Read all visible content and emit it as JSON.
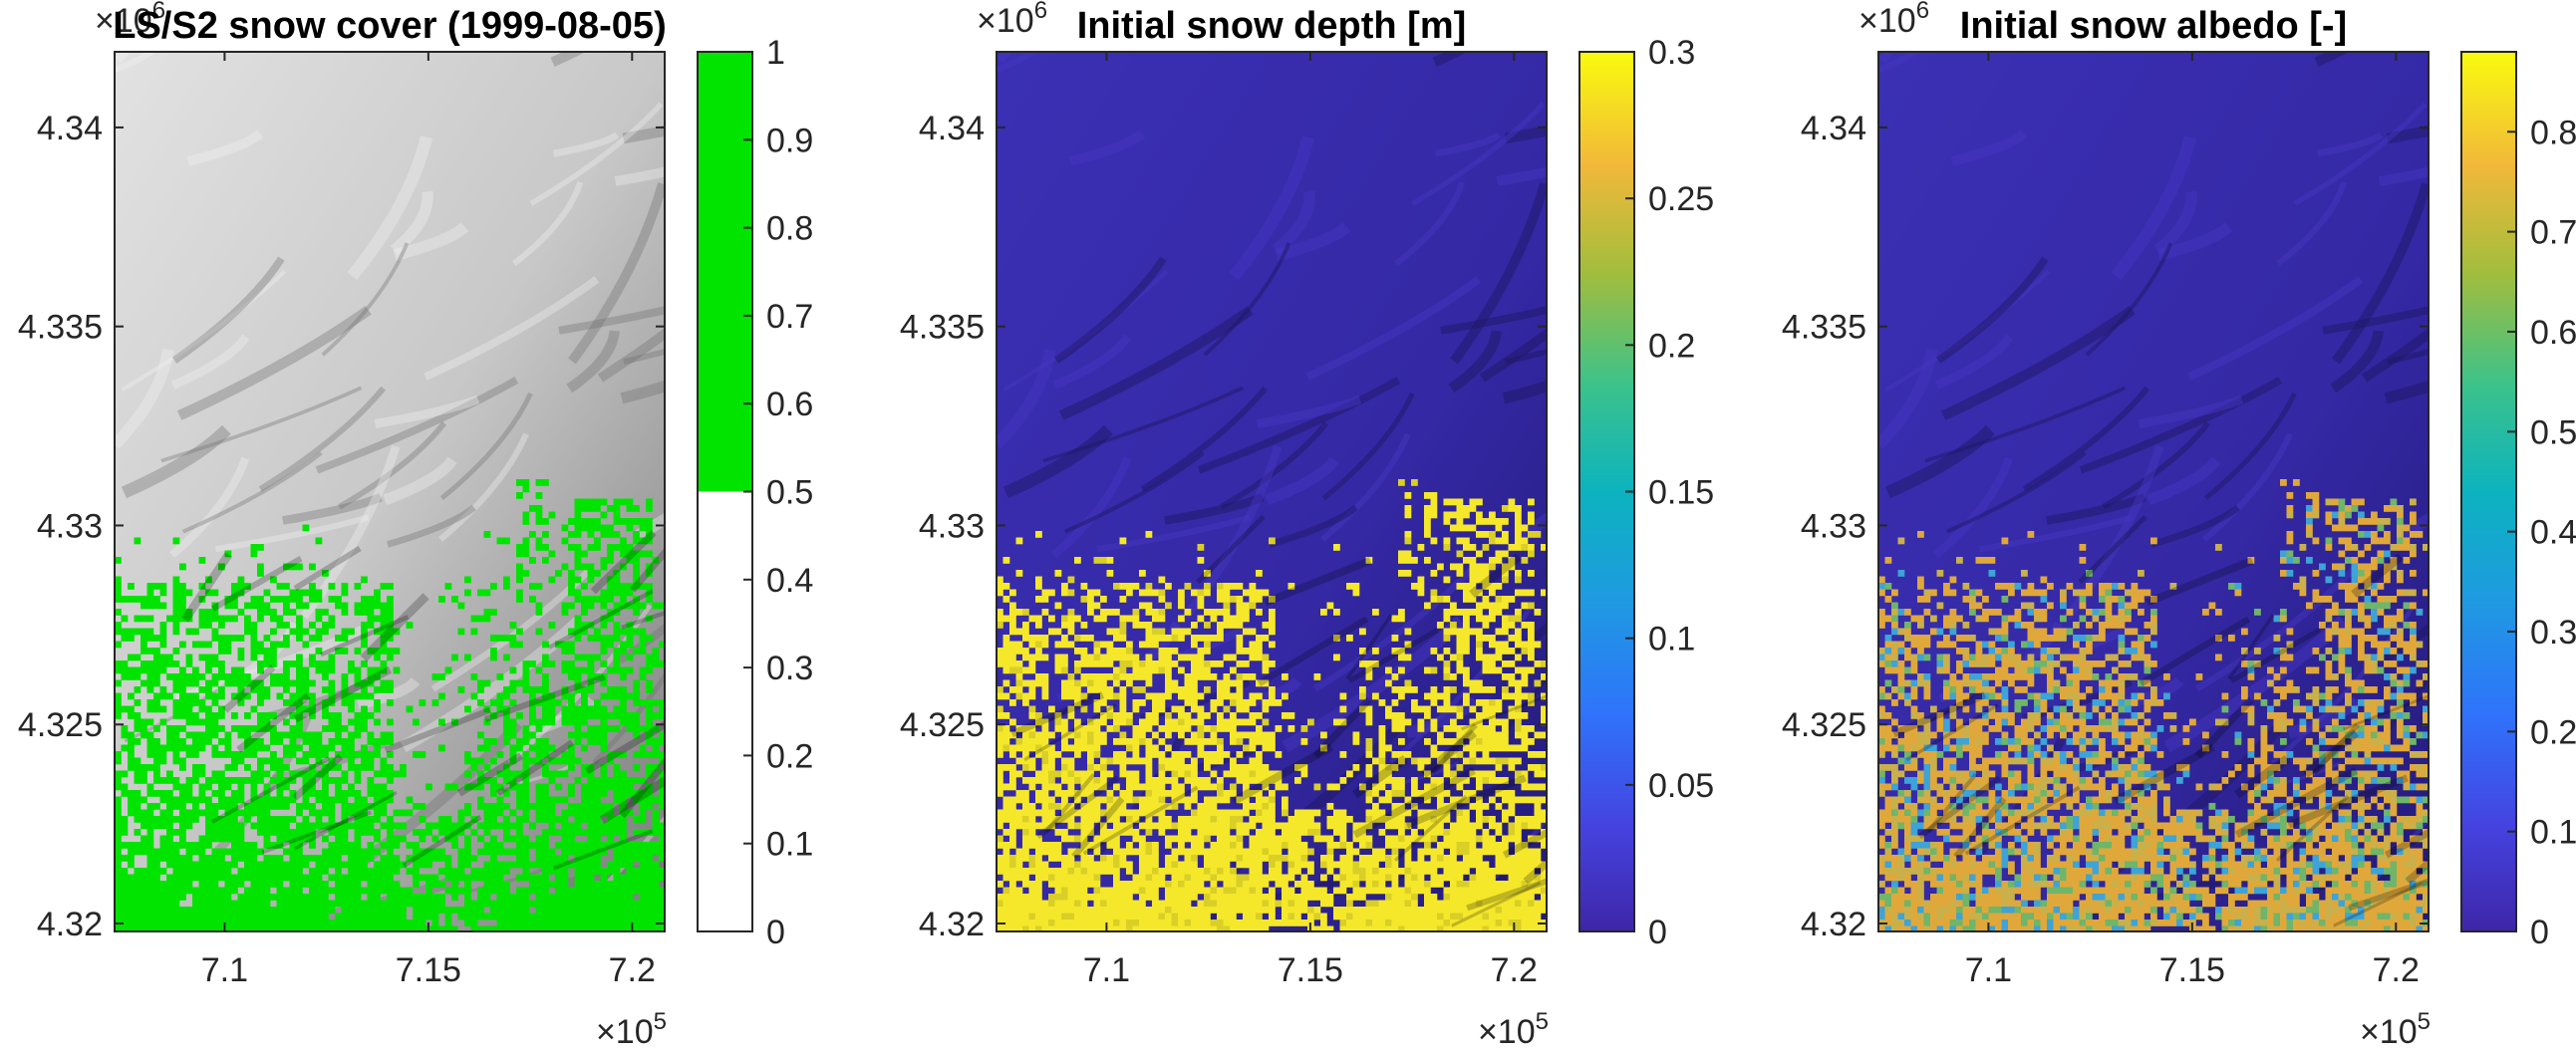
{
  "chart_data": [
    {
      "type": "heatmap",
      "title": "LS/S2 snow cover (1999-08-05)",
      "x_ticks": [
        "7.1",
        "7.15",
        "7.2"
      ],
      "x_tick_values": [
        7.1,
        7.15,
        7.2
      ],
      "xlim": [
        7.073,
        7.208
      ],
      "x_multiplier": {
        "base": "×10",
        "exp": "5"
      },
      "y_ticks": [
        "4.34",
        "4.335",
        "4.33",
        "4.325",
        "4.32"
      ],
      "y_tick_values": [
        4.34,
        4.335,
        4.33,
        4.325,
        4.32
      ],
      "ylim": [
        4.3198,
        4.3419
      ],
      "y_multiplier": {
        "base": "×10",
        "exp": "6"
      },
      "colorbar": {
        "ticks": [
          "1",
          "0.9",
          "0.8",
          "0.7",
          "0.6",
          "0.5",
          "0.4",
          "0.3",
          "0.2",
          "0.1",
          "0"
        ],
        "tick_values": [
          1,
          0.9,
          0.8,
          0.7,
          0.6,
          0.5,
          0.4,
          0.3,
          0.2,
          0.1,
          0
        ],
        "range": [
          0,
          1
        ],
        "colormap": "binary",
        "colors": [
          "#ffffff",
          "#00e400"
        ],
        "threshold": 0.5
      },
      "background": "grayscale hillshade",
      "overlay_color": "#00e400"
    },
    {
      "type": "heatmap",
      "title": "Initial snow depth [m]",
      "x_ticks": [
        "7.1",
        "7.15",
        "7.2"
      ],
      "x_tick_values": [
        7.1,
        7.15,
        7.2
      ],
      "xlim": [
        7.073,
        7.208
      ],
      "x_multiplier": {
        "base": "×10",
        "exp": "5"
      },
      "y_ticks": [
        "4.34",
        "4.335",
        "4.33",
        "4.325",
        "4.32"
      ],
      "y_tick_values": [
        4.34,
        4.335,
        4.33,
        4.325,
        4.32
      ],
      "ylim": [
        4.3198,
        4.3419
      ],
      "y_multiplier": {
        "base": "×10",
        "exp": "6"
      },
      "colorbar": {
        "ticks": [
          "0.3",
          "0.25",
          "0.2",
          "0.15",
          "0.1",
          "0.05",
          "0"
        ],
        "tick_values": [
          0.3,
          0.25,
          0.2,
          0.15,
          0.1,
          0.05,
          0
        ],
        "range": [
          0,
          0.3
        ],
        "colormap": "parula"
      },
      "background_color": "#3a2fb0",
      "overlay_color": "#f5e82a"
    },
    {
      "type": "heatmap",
      "title": "Initial snow albedo [-]",
      "x_ticks": [
        "7.1",
        "7.15",
        "7.2"
      ],
      "x_tick_values": [
        7.1,
        7.15,
        7.2
      ],
      "xlim": [
        7.073,
        7.208
      ],
      "x_multiplier": {
        "base": "×10",
        "exp": "5"
      },
      "y_ticks": [
        "4.34",
        "4.335",
        "4.33",
        "4.325",
        "4.32"
      ],
      "y_tick_values": [
        4.34,
        4.335,
        4.33,
        4.325,
        4.32
      ],
      "ylim": [
        4.3198,
        4.3419
      ],
      "y_multiplier": {
        "base": "×10",
        "exp": "6"
      },
      "colorbar": {
        "ticks": [
          "0.8",
          "0.7",
          "0.6",
          "0.5",
          "0.4",
          "0.3",
          "0.2",
          "0.1",
          "0"
        ],
        "tick_values": [
          0.8,
          0.7,
          0.6,
          0.5,
          0.4,
          0.3,
          0.2,
          0.1,
          0
        ],
        "range": [
          0,
          0.88
        ],
        "colormap": "parula"
      },
      "background_color": "#3a2fb0",
      "overlay_color": "#e8a92e"
    }
  ]
}
